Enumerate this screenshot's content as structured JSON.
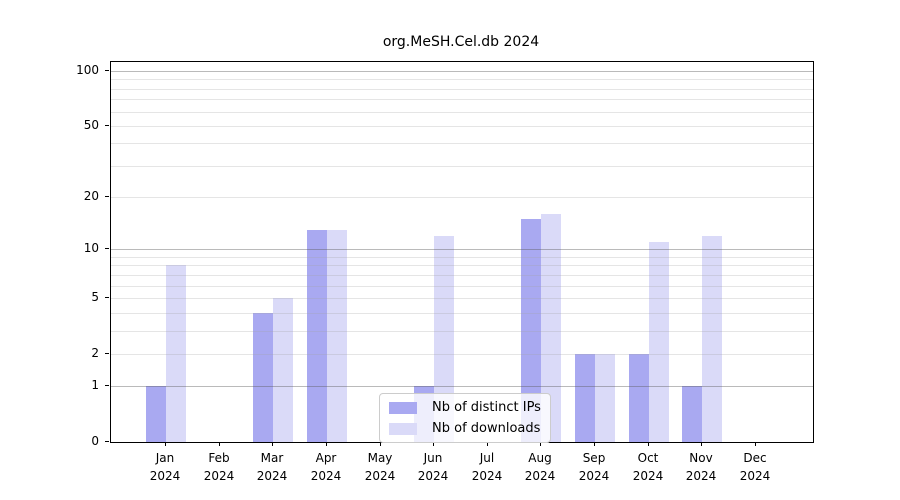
{
  "chart_data": {
    "type": "bar",
    "title": "org.MeSH.Cel.db 2024",
    "categories": [
      "Jan",
      "Feb",
      "Mar",
      "Apr",
      "May",
      "Jun",
      "Jul",
      "Aug",
      "Sep",
      "Oct",
      "Nov",
      "Dec"
    ],
    "category_year": "2024",
    "series": [
      {
        "name": "Nb of distinct IPs",
        "color": "#a9a9f1",
        "values": [
          1,
          0,
          4,
          13,
          0,
          1,
          0,
          15,
          2,
          2,
          1,
          0
        ]
      },
      {
        "name": "Nb of downloads",
        "color": "#dadaf8",
        "values": [
          8,
          0,
          5,
          13,
          0,
          12,
          0,
          16,
          2,
          11,
          12,
          0
        ]
      }
    ],
    "yscale": "log1p",
    "ylim": [
      0,
      100
    ],
    "yticks": [
      0,
      1,
      2,
      5,
      10,
      20,
      50,
      100
    ],
    "major_gridlines": [
      1,
      10,
      100
    ],
    "minor_gridlines": [
      2,
      3,
      4,
      5,
      6,
      7,
      8,
      9,
      20,
      30,
      40,
      50,
      60,
      70,
      80,
      90
    ],
    "grid": true,
    "legend_position": "inside-bottom-center",
    "axis_color": "#000000"
  }
}
